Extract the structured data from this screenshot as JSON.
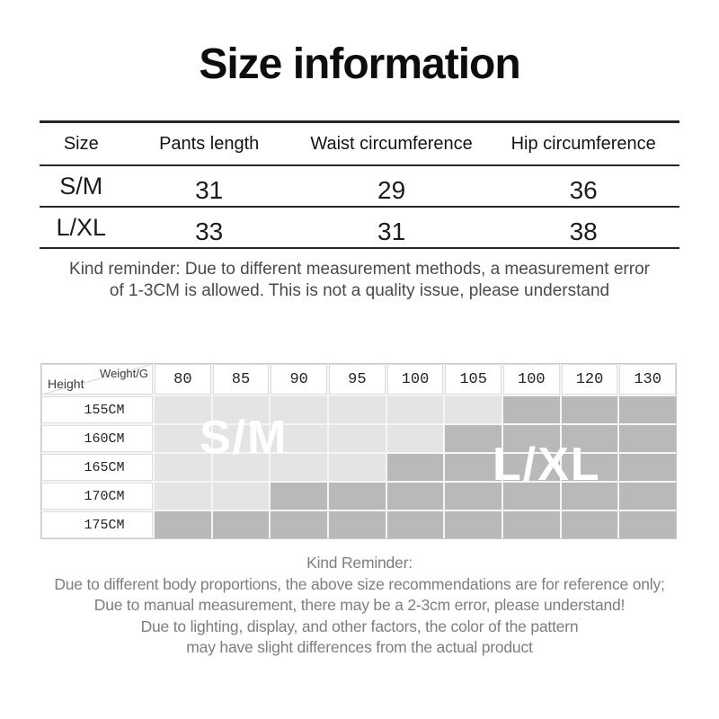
{
  "chart_data": [
    {
      "type": "table",
      "title": "Size information",
      "columns": [
        "Size",
        "Pants length",
        "Waist circumference",
        "Hip circumference"
      ],
      "rows": [
        [
          "S/M",
          "31",
          "29",
          "36"
        ],
        [
          "L/XL",
          "33",
          "31",
          "38"
        ]
      ]
    },
    {
      "type": "heatmap",
      "title": "Height vs weight size recommendation",
      "xlabel": "Weight/G",
      "ylabel": "Height",
      "x": [
        "80",
        "85",
        "90",
        "95",
        "100",
        "105",
        "100",
        "120",
        "130"
      ],
      "y": [
        "155CM",
        "160CM",
        "165CM",
        "170CM",
        "175CM"
      ],
      "values": [
        [
          "S/M",
          "S/M",
          "S/M",
          "S/M",
          "S/M",
          "S/M",
          "L/XL",
          "L/XL",
          "L/XL"
        ],
        [
          "S/M",
          "S/M",
          "S/M",
          "S/M",
          "S/M",
          "L/XL",
          "L/XL",
          "L/XL",
          "L/XL"
        ],
        [
          "S/M",
          "S/M",
          "S/M",
          "S/M",
          "L/XL",
          "L/XL",
          "L/XL",
          "L/XL",
          "L/XL"
        ],
        [
          "S/M",
          "S/M",
          "L/XL",
          "L/XL",
          "L/XL",
          "L/XL",
          "L/XL",
          "L/XL",
          "L/XL"
        ],
        [
          "L/XL",
          "L/XL",
          "L/XL",
          "L/XL",
          "L/XL",
          "L/XL",
          "L/XL",
          "L/XL",
          "L/XL"
        ]
      ],
      "legend": {
        "S/M": "#e4e4e4",
        "L/XL": "#b9b9b9"
      },
      "legend_position": "watermark-overlay",
      "grid": true
    }
  ],
  "reminder_top": {
    "line1": "Kind reminder: Due to different measurement methods, a measurement error",
    "line2": "of 1-3CM is allowed. This is not a quality issue, please understand"
  },
  "fit_chart": {
    "colors": {
      "light": "#e4e4e4",
      "dark": "#b9b9b9"
    },
    "watermarks": [
      {
        "label": "S/M"
      },
      {
        "label": "L/XL"
      }
    ]
  },
  "reminder_bottom": {
    "lines": [
      "Kind Reminder:",
      "Due to different body proportions, the above size recommendations are for reference only;",
      "Due to manual measurement, there may be a 2-3cm error, please understand!",
      "Due to lighting, display, and other factors, the color of the pattern",
      "may have slight differences from the actual product"
    ]
  }
}
